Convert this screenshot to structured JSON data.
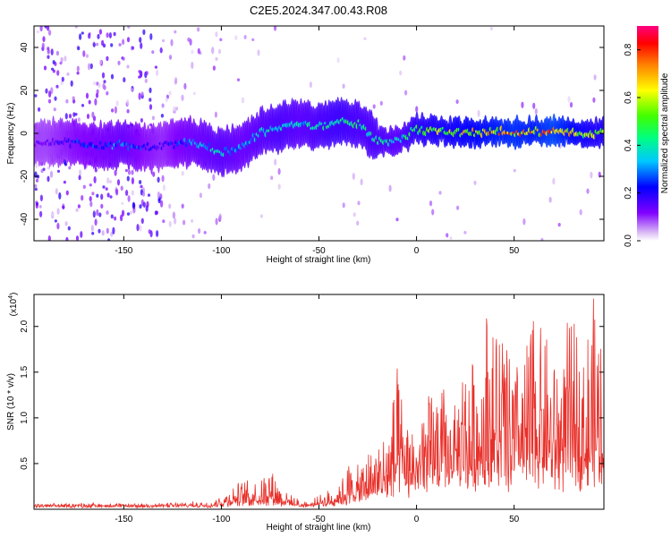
{
  "figure_title": "C2E5.2024.347.00.43.R08",
  "chart_data": [
    {
      "type": "heatmap",
      "panel": "spectrogram",
      "xlabel": "Height of straight line (km)",
      "ylabel": "Frequency (Hz)",
      "xlim": [
        -196,
        96
      ],
      "ylim": [
        -50,
        50
      ],
      "xticks": [
        -150,
        -100,
        -50,
        0,
        50
      ],
      "yticks": [
        -40,
        -20,
        0,
        20,
        40
      ],
      "colorbar": {
        "label": "Normalized spectral amplitude",
        "range": [
          0.0,
          0.9
        ],
        "ticks": [
          0.0,
          0.2,
          0.4,
          0.6,
          0.8
        ],
        "colormap": [
          "#ffffff",
          "#c8a0f0",
          "#8000ff",
          "#0000ff",
          "#00c8ff",
          "#00ff80",
          "#40ff00",
          "#ffff00",
          "#ff8000",
          "#ff0000",
          "#ff0080"
        ]
      },
      "ridge_frequency": {
        "x": [
          -190,
          -175,
          -160,
          -150,
          -140,
          -130,
          -120,
          -110,
          -100,
          -90,
          -80,
          -70,
          -60,
          -50,
          -40,
          -30,
          -20,
          -10,
          0,
          10,
          20,
          30,
          40,
          50,
          60,
          70,
          80,
          90
        ],
        "y": [
          -5,
          -4,
          -6,
          -5,
          -7,
          -6,
          -4,
          -5,
          -9,
          -7,
          0,
          3,
          4,
          3,
          5,
          5,
          -3,
          -4,
          2,
          1,
          1,
          0,
          1,
          0,
          1,
          1,
          1,
          0
        ]
      },
      "peak_amplitude": {
        "x": [
          -190,
          -175,
          -160,
          -150,
          -140,
          -130,
          -120,
          -110,
          -100,
          -90,
          -80,
          -70,
          -60,
          -50,
          -40,
          -30,
          -20,
          -10,
          0,
          10,
          20,
          30,
          40,
          50,
          60,
          70,
          80,
          90
        ],
        "values": [
          0.15,
          0.25,
          0.3,
          0.35,
          0.25,
          0.2,
          0.3,
          0.35,
          0.4,
          0.35,
          0.4,
          0.45,
          0.4,
          0.45,
          0.5,
          0.45,
          0.45,
          0.4,
          0.55,
          0.6,
          0.65,
          0.7,
          0.75,
          0.8,
          0.75,
          0.85,
          0.7,
          0.6
        ]
      }
    },
    {
      "type": "line",
      "panel": "snr",
      "xlabel": "Height of straight line (km)",
      "ylabel": "SNR (10 * v/v)",
      "y_multiplier_label": "(x10",
      "y_multiplier_exponent": "4",
      "y_multiplier_close": ")",
      "xlim": [
        -196,
        96
      ],
      "ylim": [
        0,
        23500
      ],
      "xticks": [
        -150,
        -100,
        -50,
        0,
        50
      ],
      "yticks": [
        5000,
        10000,
        15000,
        20000
      ],
      "ytick_labels": [
        "0.5",
        "1.0",
        "1.5",
        "2.0"
      ],
      "series": [
        {
          "color": "#e8302a",
          "envelope": {
            "x": [
              -196,
              -170,
              -140,
              -120,
              -105,
              -100,
              -95,
              -90,
              -85,
              -80,
              -75,
              -70,
              -65,
              -60,
              -55,
              -50,
              -45,
              -40,
              -35,
              -30,
              -25,
              -20,
              -15,
              -10,
              -5,
              0,
              5,
              10,
              15,
              20,
              25,
              30,
              35,
              40,
              45,
              50,
              55,
              60,
              65,
              70,
              75,
              80,
              85,
              90,
              96
            ],
            "peak": [
              500,
              600,
              500,
              700,
              800,
              1600,
              2500,
              2900,
              3200,
              3400,
              4800,
              2800,
              1500,
              1000,
              800,
              1400,
              2000,
              2600,
              5000,
              4500,
              6400,
              7500,
              9000,
              15000,
              9000,
              10000,
              11500,
              14000,
              12500,
              11000,
              18000,
              15000,
              23500,
              21000,
              20000,
              16000,
              17000,
              22000,
              20000,
              16000,
              18500,
              21000,
              17000,
              22500,
              20000
            ],
            "base": [
              300,
              300,
              300,
              300,
              300,
              400,
              500,
              600,
              600,
              600,
              800,
              600,
              400,
              300,
              300,
              400,
              500,
              600,
              900,
              900,
              1200,
              1400,
              1800,
              2200,
              2200,
              2400,
              2600,
              2800,
              3000,
              3000,
              3200,
              3200,
              3400,
              3400,
              3400,
              3400,
              3400,
              3600,
              3600,
              3600,
              3600,
              3800,
              3800,
              3800,
              3800
            ]
          }
        }
      ]
    }
  ]
}
